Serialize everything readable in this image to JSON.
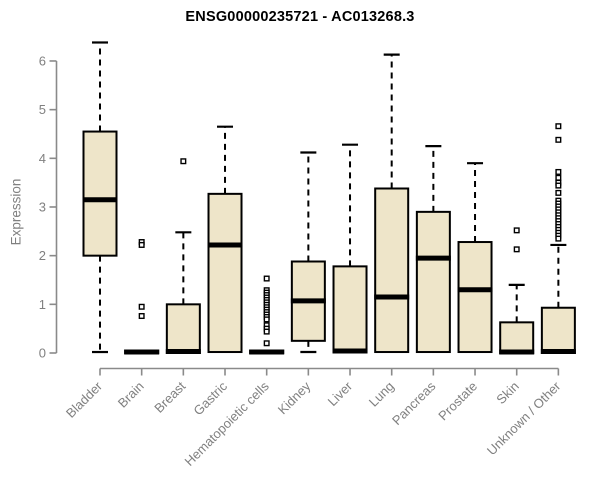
{
  "page": {
    "background": "#FFFFFF"
  },
  "chart_data": {
    "type": "boxplot",
    "title": "ENSG00000235721 - AC013268.3",
    "ylabel": "Expression",
    "xlabel": "",
    "ylim": [
      0,
      6
    ],
    "yticks": [
      0,
      1,
      2,
      3,
      4,
      5,
      6
    ],
    "grid": false,
    "legend": null,
    "categories": [
      "Bladder",
      "Brain",
      "Breast",
      "Gastric",
      "Hematopoietic cells",
      "Kidney",
      "Liver",
      "Lung",
      "Pancreas",
      "Prostate",
      "Skin",
      "Unknown / Other"
    ],
    "boxes": [
      {
        "category": "Bladder",
        "whisker_low": 0.02,
        "q1": 2.0,
        "median": 3.15,
        "q3": 4.55,
        "whisker_high": 6.38,
        "outliers": []
      },
      {
        "category": "Brain",
        "whisker_low": 0.0,
        "q1": 0.0,
        "median": 0.02,
        "q3": 0.05,
        "whisker_high": 0.08,
        "outliers": [
          2.28,
          2.22,
          0.95,
          0.76
        ]
      },
      {
        "category": "Breast",
        "whisker_low": 0.0,
        "q1": 0.0,
        "median": 0.03,
        "q3": 1.0,
        "whisker_high": 2.48,
        "outliers": [
          3.94
        ]
      },
      {
        "category": "Gastric",
        "whisker_low": 0.02,
        "q1": 0.02,
        "median": 2.22,
        "q3": 3.27,
        "whisker_high": 4.65,
        "outliers": []
      },
      {
        "category": "Hematopoietic cells",
        "whisker_low": 0.0,
        "q1": 0.0,
        "median": 0.02,
        "q3": 0.05,
        "whisker_high": 0.07,
        "outliers": [
          1.53,
          1.29,
          1.24,
          1.19,
          1.14,
          1.09,
          1.04,
          0.99,
          0.94,
          0.89,
          0.84,
          0.79,
          0.74,
          0.69,
          0.57,
          0.5,
          0.44,
          0.2
        ]
      },
      {
        "category": "Kidney",
        "whisker_low": 0.02,
        "q1": 0.25,
        "median": 1.07,
        "q3": 1.88,
        "whisker_high": 4.12,
        "outliers": []
      },
      {
        "category": "Liver",
        "whisker_low": 0.02,
        "q1": 0.02,
        "median": 0.04,
        "q3": 1.78,
        "whisker_high": 4.28,
        "outliers": []
      },
      {
        "category": "Lung",
        "whisker_low": 0.02,
        "q1": 0.02,
        "median": 1.15,
        "q3": 3.38,
        "whisker_high": 6.13,
        "outliers": []
      },
      {
        "category": "Pancreas",
        "whisker_low": 0.02,
        "q1": 0.02,
        "median": 1.95,
        "q3": 2.9,
        "whisker_high": 4.25,
        "outliers": []
      },
      {
        "category": "Prostate",
        "whisker_low": 0.02,
        "q1": 0.02,
        "median": 1.3,
        "q3": 2.28,
        "whisker_high": 3.9,
        "outliers": []
      },
      {
        "category": "Skin",
        "whisker_low": 0.0,
        "q1": 0.0,
        "median": 0.02,
        "q3": 0.63,
        "whisker_high": 1.4,
        "outliers": [
          2.52,
          2.13
        ]
      },
      {
        "category": "Unknown / Other",
        "whisker_low": 0.0,
        "q1": 0.0,
        "median": 0.03,
        "q3": 0.93,
        "whisker_high": 2.22,
        "outliers": [
          4.66,
          4.38,
          3.72,
          3.6,
          3.5,
          3.44,
          3.29,
          3.13,
          3.07,
          3.01,
          2.95,
          2.89,
          2.83,
          2.77,
          2.71,
          2.65,
          2.59,
          2.53,
          2.47,
          2.41,
          2.35
        ]
      }
    ],
    "colors": {
      "box_fill": "#EEE5C9",
      "box_stroke": "#000000",
      "median": "#000000",
      "whisker": "#000000",
      "outlier_stroke": "#000000",
      "axis": "#8A8A8A",
      "tick_label": "#808080",
      "title": "#000000"
    }
  }
}
